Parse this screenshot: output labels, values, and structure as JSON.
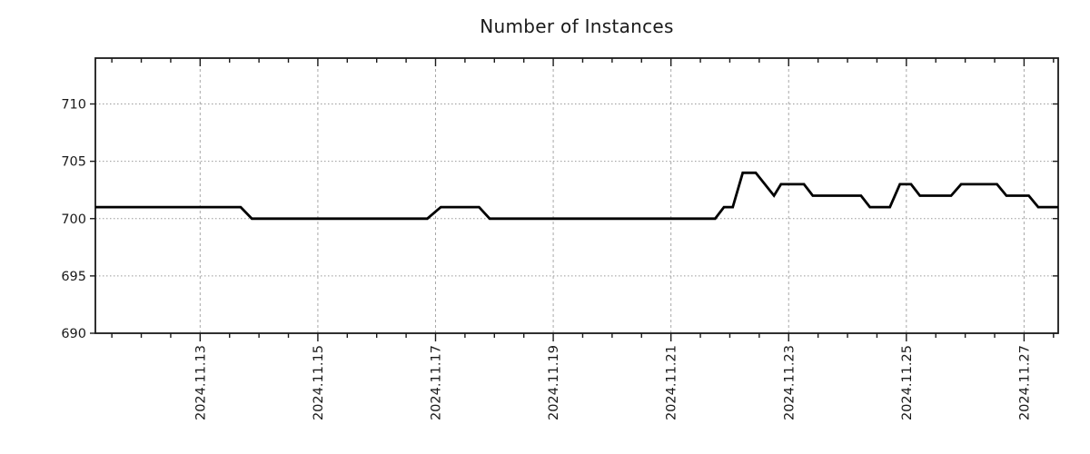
{
  "chart_data": {
    "type": "line",
    "title": "Number of Instances",
    "xlabel": "",
    "ylabel": "",
    "legend_position": "none",
    "grid_on": true,
    "xlim_days": [
      11.22,
      27.58
    ],
    "ylim": [
      690,
      714
    ],
    "y_ticks": [
      690,
      695,
      700,
      705,
      710
    ],
    "x_tick_days": [
      13,
      15,
      17,
      19,
      21,
      23,
      25,
      27
    ],
    "x_tick_labels": [
      "2024.11.13",
      "2024.11.15",
      "2024.11.17",
      "2024.11.19",
      "2024.11.21",
      "2024.11.23",
      "2024.11.25",
      "2024.11.27"
    ],
    "x_minor_tick_step_days": 0.5,
    "colors": {
      "line": "#000000",
      "spine": "#1a1a1a",
      "tick": "#1a1a1a",
      "grid_vertical": "#a8a8a8",
      "grid_horizontal": "#9a9a9a",
      "text": "#1a1a1a",
      "background": "#ffffff"
    },
    "series": [
      {
        "name": "instances",
        "color": "#000000",
        "points": [
          [
            11.22,
            701
          ],
          [
            13.69,
            701
          ],
          [
            13.88,
            700
          ],
          [
            16.86,
            700
          ],
          [
            17.09,
            701
          ],
          [
            17.74,
            701
          ],
          [
            17.92,
            700
          ],
          [
            21.75,
            700
          ],
          [
            21.9,
            701
          ],
          [
            22.05,
            701
          ],
          [
            22.22,
            704
          ],
          [
            22.44,
            704
          ],
          [
            22.75,
            702
          ],
          [
            22.87,
            703
          ],
          [
            23.26,
            703
          ],
          [
            23.41,
            702
          ],
          [
            24.23,
            702
          ],
          [
            24.38,
            701
          ],
          [
            24.72,
            701
          ],
          [
            24.89,
            703
          ],
          [
            25.08,
            703
          ],
          [
            25.23,
            702
          ],
          [
            25.76,
            702
          ],
          [
            25.93,
            703
          ],
          [
            26.54,
            703
          ],
          [
            26.7,
            702
          ],
          [
            27.08,
            702
          ],
          [
            27.24,
            701
          ],
          [
            27.58,
            701
          ]
        ]
      }
    ]
  }
}
